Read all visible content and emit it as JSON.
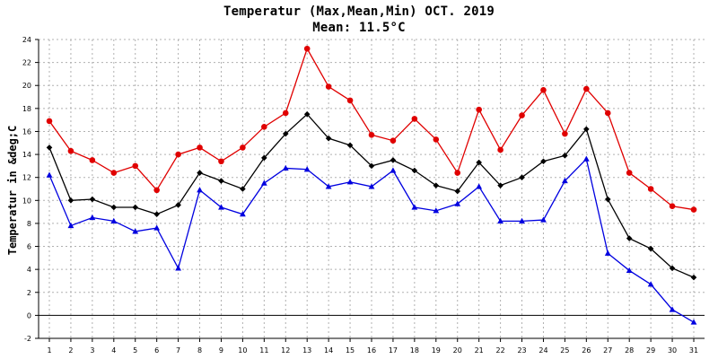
{
  "chart_data": {
    "type": "line",
    "title": "Temperatur (Max,Mean,Min) OCT. 2019",
    "subtitle": "Mean: 11.5°C",
    "xlabel": "",
    "ylabel": "Temperatur in &deg;C",
    "ylim": [
      -2,
      24
    ],
    "yticks": [
      -2,
      0,
      2,
      4,
      6,
      8,
      10,
      12,
      14,
      16,
      18,
      20,
      22,
      24
    ],
    "grid": true,
    "legend": "none",
    "x": [
      1,
      2,
      3,
      4,
      5,
      6,
      7,
      8,
      9,
      10,
      11,
      12,
      13,
      14,
      15,
      16,
      17,
      18,
      19,
      20,
      21,
      22,
      23,
      24,
      25,
      26,
      27,
      28,
      29,
      30,
      31
    ],
    "series": [
      {
        "key": "max",
        "color": "#e00000",
        "marker": "circle",
        "values": [
          16.9,
          14.3,
          13.5,
          12.4,
          13.0,
          10.9,
          14.0,
          14.6,
          13.4,
          14.6,
          16.4,
          17.6,
          23.2,
          19.9,
          18.7,
          15.7,
          15.2,
          17.1,
          15.3,
          12.4,
          17.9,
          14.4,
          17.4,
          19.6,
          15.8,
          19.7,
          17.6,
          12.4,
          11.0,
          9.5,
          9.2
        ]
      },
      {
        "key": "mean",
        "color": "#000000",
        "marker": "diamond",
        "values": [
          14.6,
          10.0,
          10.1,
          9.4,
          9.4,
          8.8,
          9.6,
          12.4,
          11.7,
          11.0,
          13.7,
          15.8,
          17.5,
          15.4,
          14.8,
          13.0,
          13.5,
          12.6,
          11.3,
          10.8,
          13.3,
          11.3,
          12.0,
          13.4,
          13.9,
          16.2,
          10.1,
          6.7,
          5.8,
          4.1,
          3.3
        ]
      },
      {
        "key": "min",
        "color": "#0000e0",
        "marker": "triangle",
        "values": [
          12.2,
          7.8,
          8.5,
          8.2,
          7.3,
          7.6,
          4.1,
          10.9,
          9.4,
          8.8,
          11.5,
          12.8,
          12.7,
          11.2,
          11.6,
          11.2,
          12.6,
          9.4,
          9.1,
          9.7,
          11.2,
          8.2,
          8.2,
          8.3,
          11.7,
          13.6,
          5.4,
          3.9,
          2.7,
          0.5,
          -0.6
        ]
      }
    ]
  }
}
